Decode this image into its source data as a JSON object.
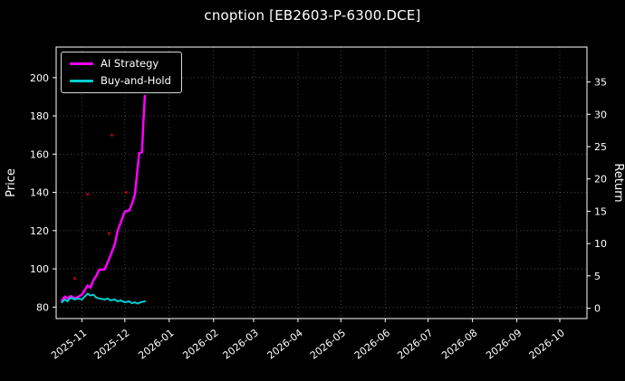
{
  "title": "cnoption [EB2603-P-6300.DCE]",
  "chart_data": {
    "type": "line",
    "title": "cnoption [EB2603-P-6300.DCE]",
    "background": "#000000",
    "text_color": "#ffffff",
    "grid": true,
    "grid_color": "#bbbbbb",
    "legend_position": "upper-left",
    "xlabel": "",
    "ylabel_left": "Price",
    "ylabel_right": "Return",
    "xlim": [
      "2025-10-14",
      "2026-10-20"
    ],
    "ylim_price": [
      74,
      216
    ],
    "ylim_return": [
      -1.6,
      40.4
    ],
    "price_ticks": [
      80,
      100,
      120,
      140,
      160,
      180,
      200
    ],
    "return_ticks": [
      0,
      5,
      10,
      15,
      20,
      25,
      30,
      35
    ],
    "x_ticks": [
      "2025-11",
      "2025-12",
      "2026-01",
      "2026-02",
      "2026-03",
      "2026-04",
      "2026-05",
      "2026-06",
      "2026-07",
      "2026-08",
      "2026-09",
      "2026-10"
    ],
    "series": [
      {
        "name": "AI Strategy",
        "color": "#ff00ff",
        "width": 2.5,
        "points": [
          [
            "2025-10-18",
            83.5
          ],
          [
            "2025-10-20",
            85.5
          ],
          [
            "2025-10-22",
            84.5
          ],
          [
            "2025-10-24",
            85.8
          ],
          [
            "2025-10-27",
            84.6
          ],
          [
            "2025-10-29",
            85.2
          ],
          [
            "2025-11-01",
            86.5
          ],
          [
            "2025-11-03",
            89.0
          ],
          [
            "2025-11-05",
            91.3
          ],
          [
            "2025-11-07",
            90.2
          ],
          [
            "2025-11-09",
            94.0
          ],
          [
            "2025-11-11",
            96.2
          ],
          [
            "2025-11-13",
            99.5
          ],
          [
            "2025-11-17",
            99.8
          ],
          [
            "2025-11-19",
            103.5
          ],
          [
            "2025-11-21",
            107.0
          ],
          [
            "2025-11-24",
            113.0
          ],
          [
            "2025-11-26",
            120.0
          ],
          [
            "2025-11-28",
            124.0
          ],
          [
            "2025-12-01",
            130.0
          ],
          [
            "2025-12-04",
            130.5
          ],
          [
            "2025-12-06",
            134.0
          ],
          [
            "2025-12-08",
            139.0
          ],
          [
            "2025-12-09",
            146.0
          ],
          [
            "2025-12-10",
            153.0
          ],
          [
            "2025-12-11",
            160.5
          ],
          [
            "2025-12-13",
            161.0
          ],
          [
            "2025-12-14",
            178.0
          ],
          [
            "2025-12-15",
            190.5
          ]
        ]
      },
      {
        "name": "Buy-and-Hold",
        "color": "#00ced1",
        "width": 2,
        "points": [
          [
            "2025-10-18",
            82.5
          ],
          [
            "2025-10-20",
            84.0
          ],
          [
            "2025-10-22",
            83.0
          ],
          [
            "2025-10-24",
            85.0
          ],
          [
            "2025-10-27",
            84.0
          ],
          [
            "2025-10-29",
            84.5
          ],
          [
            "2025-11-01",
            84.0
          ],
          [
            "2025-11-03",
            85.5
          ],
          [
            "2025-11-05",
            87.0
          ],
          [
            "2025-11-07",
            86.0
          ],
          [
            "2025-11-09",
            86.5
          ],
          [
            "2025-11-11",
            85.0
          ],
          [
            "2025-11-13",
            84.5
          ],
          [
            "2025-11-17",
            84.0
          ],
          [
            "2025-11-19",
            84.5
          ],
          [
            "2025-11-21",
            83.5
          ],
          [
            "2025-11-24",
            84.0
          ],
          [
            "2025-11-26",
            83.0
          ],
          [
            "2025-11-28",
            83.5
          ],
          [
            "2025-12-01",
            82.5
          ],
          [
            "2025-12-04",
            83.0
          ],
          [
            "2025-12-06",
            82.0
          ],
          [
            "2025-12-08",
            82.5
          ],
          [
            "2025-12-10",
            81.8
          ],
          [
            "2025-12-12",
            82.5
          ],
          [
            "2025-12-15",
            83.0
          ]
        ]
      }
    ],
    "markers": {
      "name": "signal-dots",
      "color": "#cc0000",
      "points": [
        [
          "2025-10-27",
          95.0
        ],
        [
          "2025-11-05",
          139.0
        ],
        [
          "2025-11-20",
          118.5
        ],
        [
          "2025-11-22",
          170.0
        ],
        [
          "2025-12-02",
          140.0
        ]
      ]
    }
  },
  "legend": {
    "items": [
      {
        "label": "AI Strategy"
      },
      {
        "label": "Buy-and-Hold"
      }
    ]
  }
}
